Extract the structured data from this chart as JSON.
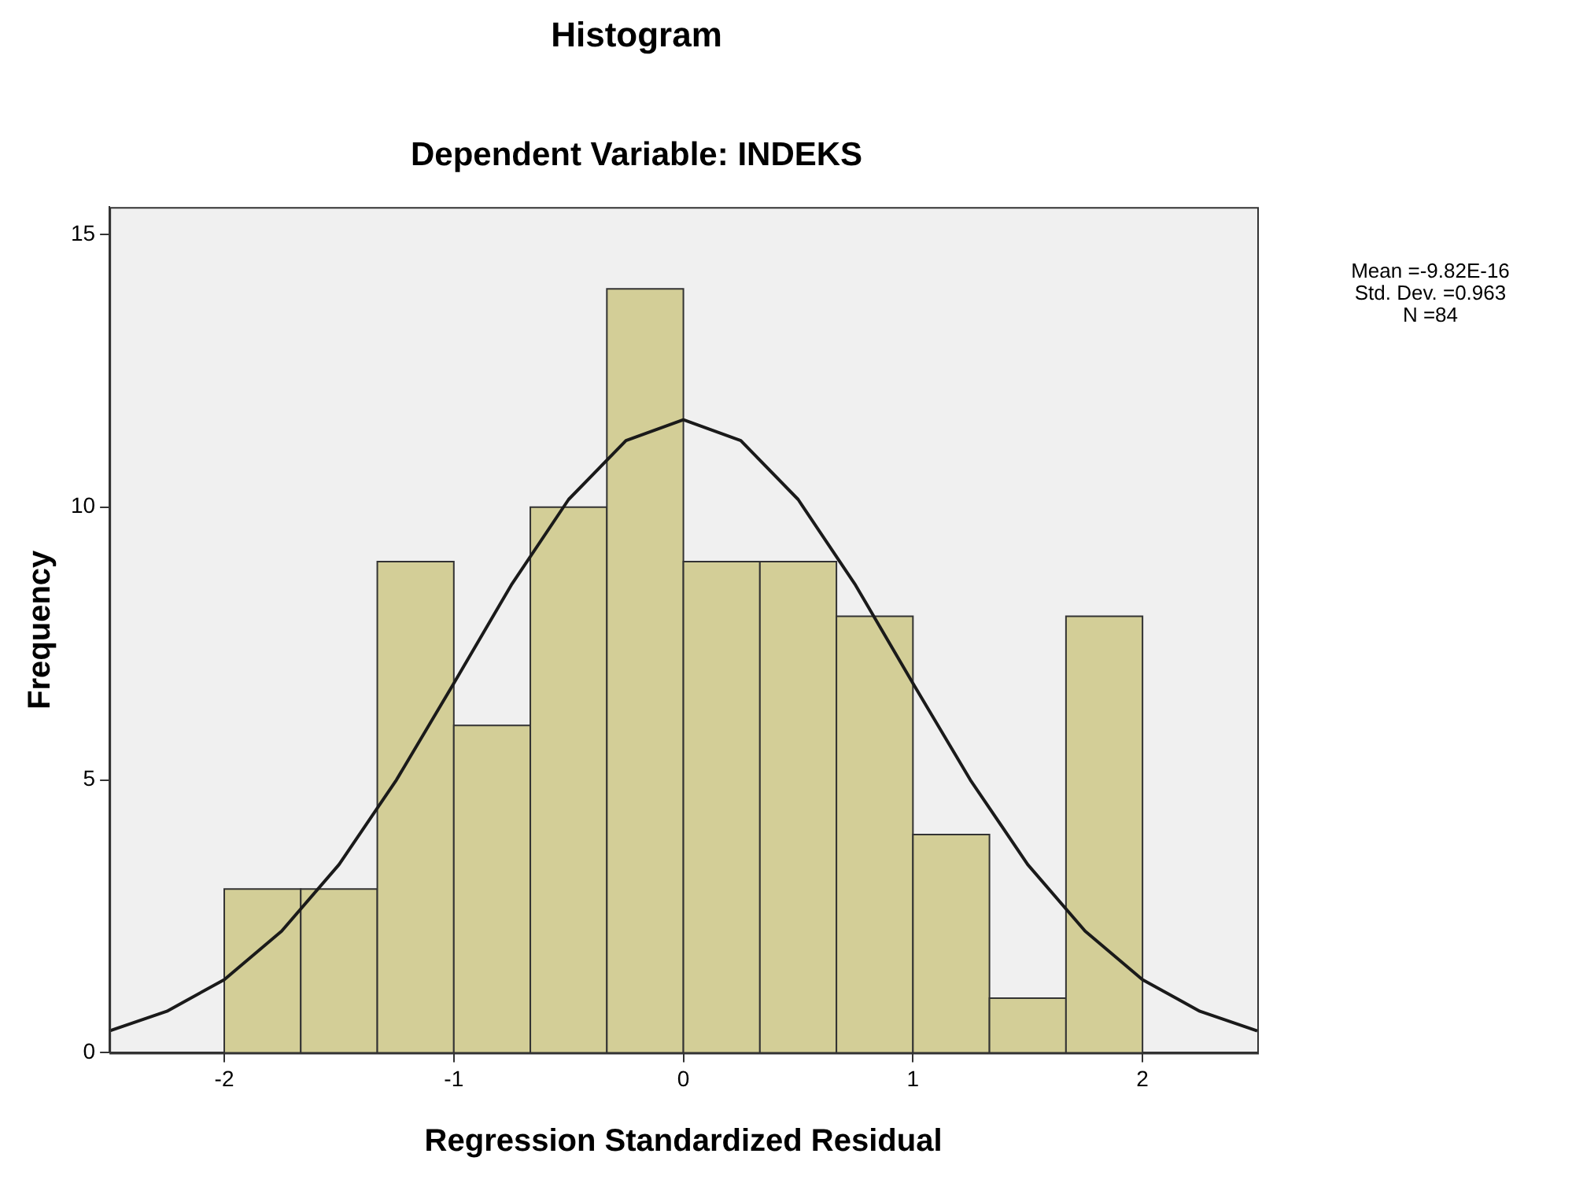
{
  "chart_data": {
    "type": "histogram",
    "title": "Histogram",
    "subtitle": "Dependent Variable: INDEKS",
    "xlabel": "Regression Standardized Residual",
    "ylabel": "Frequency",
    "bins": [
      -2,
      -1.6667,
      -1.3333,
      -1,
      -0.6667,
      -0.3333,
      0,
      0.3333,
      0.6667,
      1,
      1.3333,
      1.6667,
      2
    ],
    "values": [
      3,
      3,
      9,
      6,
      10,
      14,
      9,
      9,
      8,
      4,
      1,
      8
    ],
    "color": "#d3ce97",
    "series": [
      {
        "type": "line",
        "color": "#1a1a1a",
        "x": [
          -2.5,
          -2.25,
          -2,
          -1.75,
          -1.5,
          -1.25,
          -1,
          -0.75,
          -0.5,
          -0.25,
          0,
          0.25,
          0.5,
          0.75,
          1,
          1.25,
          1.5,
          1.75,
          2,
          2.25,
          2.5
        ],
        "values": [
          0.4,
          0.76,
          1.34,
          2.23,
          3.45,
          5.0,
          6.77,
          8.57,
          10.14,
          11.22,
          11.6,
          11.22,
          10.14,
          8.57,
          6.77,
          5.0,
          3.45,
          2.23,
          1.34,
          0.76,
          0.4
        ]
      }
    ],
    "xlim": [
      -2.5,
      2.5
    ],
    "xticks": [
      -2,
      -1,
      0,
      1,
      2
    ],
    "ylim": [
      0,
      15.5
    ],
    "yticks": [
      0,
      5,
      10,
      15
    ],
    "grid": false,
    "legend": false,
    "annotations": [
      "Mean =-9.82E-16",
      "Std. Dev. =0.963",
      "N =84"
    ]
  }
}
